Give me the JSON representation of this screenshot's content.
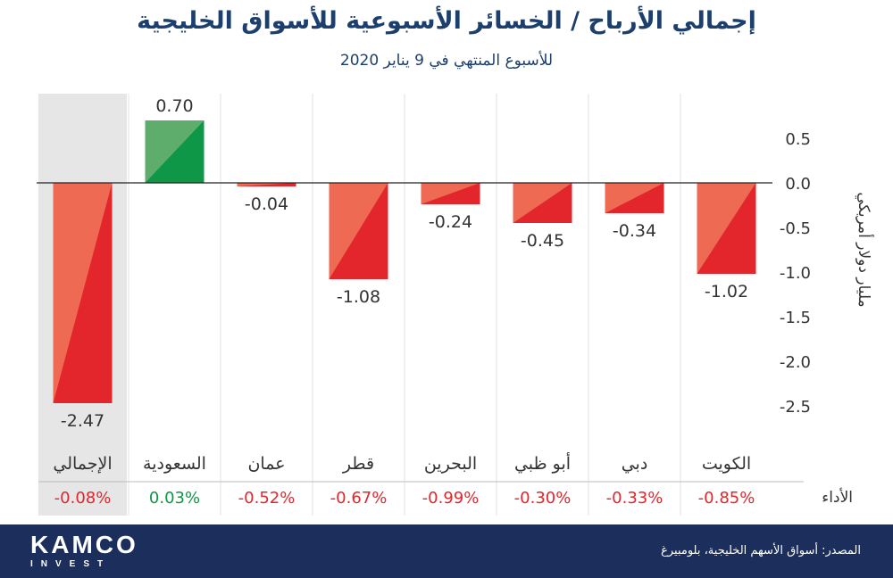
{
  "chart_data": {
    "type": "bar",
    "title": "إجمالي الأرباح / الخسائر الأسبوعية للأسواق الخليجية",
    "subtitle": "للأسبوع المنتهي في 9 يناير 2020",
    "ylabel": "مليار دولار أمريكي",
    "ylim": [
      -2.5,
      0.5
    ],
    "yticks": [
      "0.5",
      "0.0",
      "-0.5",
      "-1.0",
      "-1.5",
      "-2.0",
      "-2.5"
    ],
    "ytick_values": [
      0.5,
      0.0,
      -0.5,
      -1.0,
      -1.5,
      -2.0,
      -2.5
    ],
    "categories": [
      "الكويت",
      "دبي",
      "أبو ظبي",
      "البحرين",
      "قطر",
      "عمان",
      "السعودية",
      "الإجمالي"
    ],
    "values": [
      -1.02,
      -0.34,
      -0.45,
      -0.24,
      -1.08,
      -0.04,
      0.7,
      -2.47
    ],
    "value_labels": [
      "-1.02",
      "-0.34",
      "-0.45",
      "-0.24",
      "-1.08",
      "-0.04",
      "0.70",
      "-2.47"
    ],
    "performance_label": "الأداء",
    "performance": [
      "-0.85%",
      "-0.33%",
      "-0.30%",
      "-0.99%",
      "-0.67%",
      "-0.52%",
      "0.03%",
      "-0.08%"
    ],
    "highlighted_category": "الإجمالي",
    "colors": {
      "negative_dark": "#e3262c",
      "negative_light": "#ee6a52",
      "positive_dark": "#0d9746",
      "positive_light": "#5ead6d",
      "highlight_bg": "#e6e6e6"
    }
  },
  "footer": {
    "logo_main": "KAMCO",
    "logo_sub": "INVEST",
    "source": "المصدر: أسواق الأسهم الخليجية، بلومبيرغ"
  }
}
